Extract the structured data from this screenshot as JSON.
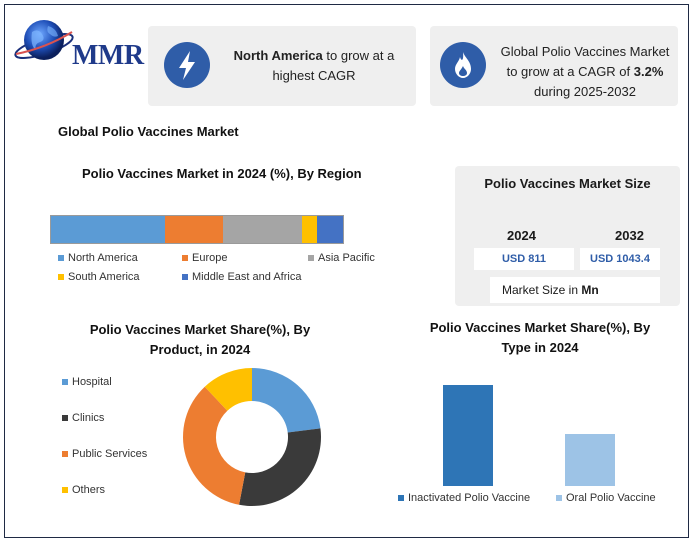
{
  "brand": {
    "name": "MMR"
  },
  "cards": [
    {
      "icon": "lightning-bolt-icon",
      "bold": "North America",
      "text": " to grow at a highest CAGR"
    },
    {
      "icon": "flame-icon",
      "pre": "Global Polio Vaccines Market to grow at a CAGR of ",
      "bold": "3.2%",
      "post": " during 2025-2032"
    }
  ],
  "main_title": "Global Polio Vaccines Market",
  "market_size": {
    "title": "Polio Vaccines Market Size",
    "year1": "2024",
    "year2": "2032",
    "value1": "USD 811",
    "value2": "USD 1043.4",
    "unit_prefix": "Market Size in ",
    "unit_bold": "Mn"
  },
  "colors": {
    "blue_light": "#5b9bd5",
    "orange": "#ed7d31",
    "gray": "#a5a5a5",
    "yellow": "#ffc000",
    "blue_dark": "#4472c4",
    "charcoal": "#3a3a3a",
    "steel": "#2e75b6",
    "pale_blue": "#9dc3e6",
    "icon_bg": "#2f5da8"
  },
  "chart_data": [
    {
      "type": "bar",
      "orientation": "horizontal-stacked",
      "title": "Polio Vaccines Market in 2024 (%), By Region",
      "series": [
        {
          "name": "North America",
          "values": [
            39
          ],
          "color": "#5b9bd5"
        },
        {
          "name": "Europe",
          "values": [
            20
          ],
          "color": "#ed7d31"
        },
        {
          "name": "Asia Pacific",
          "values": [
            27
          ],
          "color": "#a5a5a5"
        },
        {
          "name": "South America",
          "values": [
            5
          ],
          "color": "#ffc000"
        },
        {
          "name": "Middle East and Africa",
          "values": [
            9
          ],
          "color": "#4472c4"
        }
      ],
      "xlim": [
        0,
        100
      ],
      "legend": "bottom",
      "grid": false
    },
    {
      "type": "pie",
      "donut": true,
      "title": "Polio Vaccines Market Share(%), By Product, in 2024",
      "categories": [
        "Hospital",
        "Clinics",
        "Public Services",
        "Others"
      ],
      "values": [
        23,
        30,
        35,
        12
      ],
      "colors": [
        "#5b9bd5",
        "#3a3a3a",
        "#ed7d31",
        "#ffc000"
      ],
      "legend": "left"
    },
    {
      "type": "bar",
      "title": "Polio Vaccines Market Share(%), By Type in 2024",
      "series": [
        {
          "name": "Inactivated Polio Vaccine",
          "values": [
            66
          ],
          "color": "#2e75b6"
        },
        {
          "name": "Oral Polio Vaccine",
          "values": [
            34
          ],
          "color": "#9dc3e6"
        }
      ],
      "ylim": [
        0,
        70
      ],
      "legend": "bottom",
      "grid": false
    }
  ]
}
